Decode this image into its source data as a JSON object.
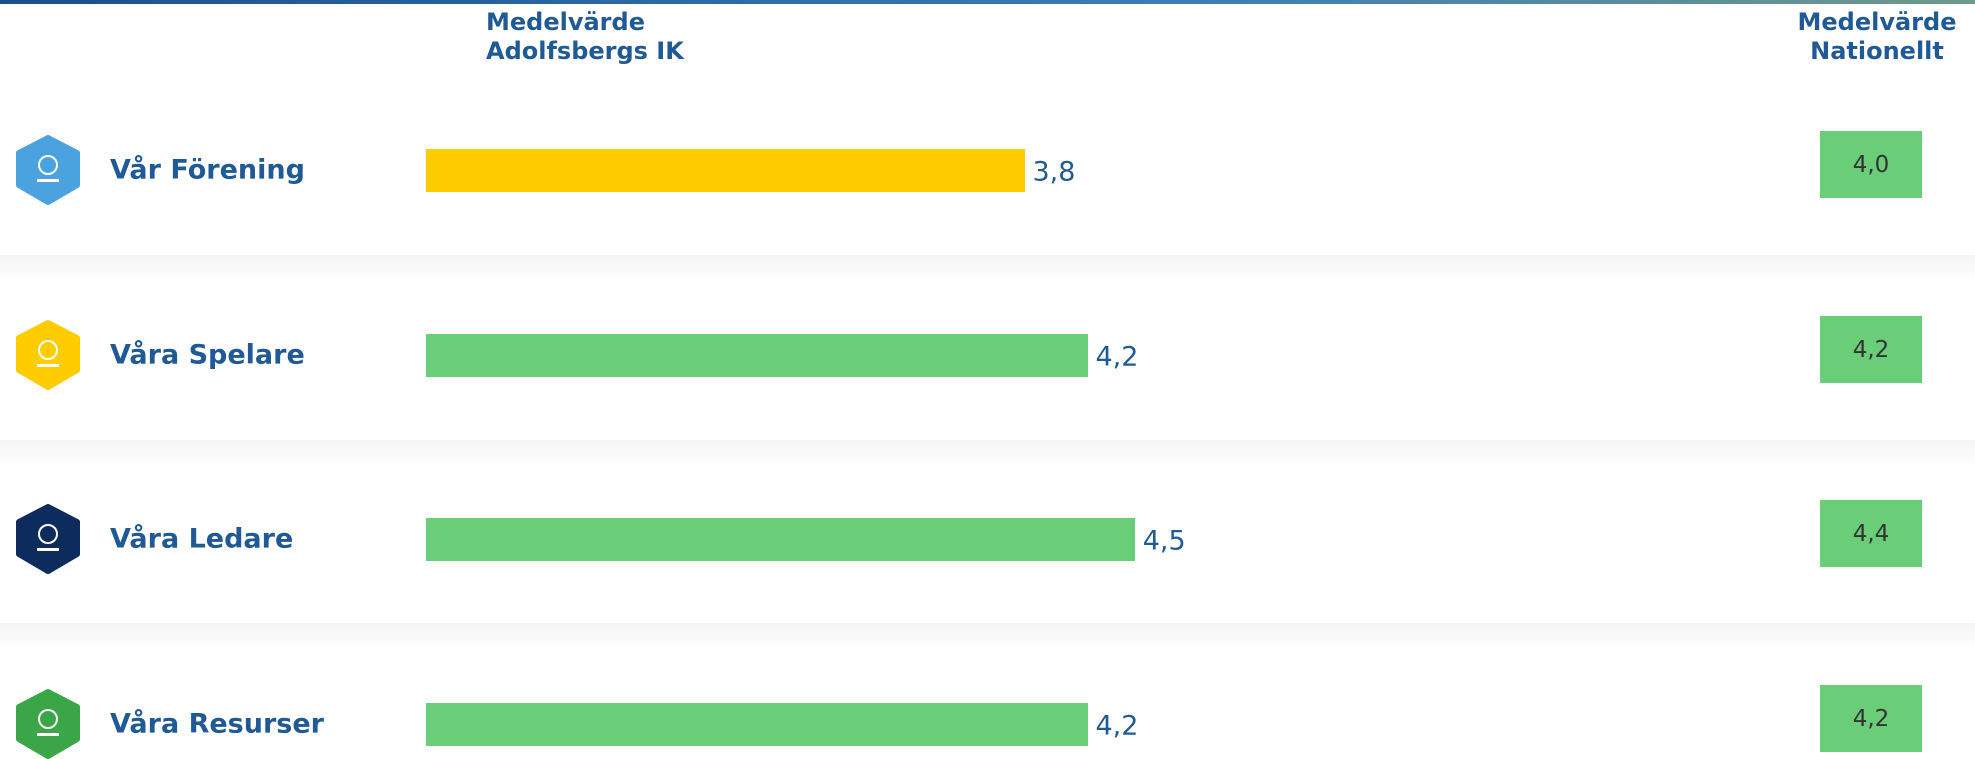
{
  "chart_data": {
    "type": "bar",
    "orientation": "horizontal",
    "categories": [
      "Vår Förening",
      "Våra Spelare",
      "Våra Ledare",
      "Våra Resurser"
    ],
    "series": [
      {
        "name": "Medelvärde Adolfsbergs IK",
        "values": [
          3.8,
          4.2,
          4.5,
          4.2
        ],
        "value_labels": [
          "3,8",
          "4,2",
          "4,5",
          "4,2"
        ],
        "colors": [
          "#ffcc00",
          "#6acd78",
          "#6acd78",
          "#6acd78"
        ]
      },
      {
        "name": "Medelvärde Nationellt",
        "values": [
          4.0,
          4.2,
          4.4,
          4.2
        ],
        "value_labels": [
          "4,0",
          "4,2",
          "4,4",
          "4,2"
        ],
        "color": "#6acd78"
      }
    ]
  }
}
